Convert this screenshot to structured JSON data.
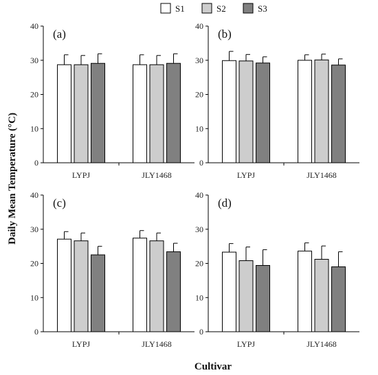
{
  "figure": {
    "ylabel": "Daily Mean Temperature (°C)",
    "xlabel": "Cultivar"
  },
  "legend": [
    {
      "name": "S1",
      "color": "#ffffff"
    },
    {
      "name": "S2",
      "color": "#cdcdcd"
    },
    {
      "name": "S3",
      "color": "#808080"
    }
  ],
  "chart_data": [
    {
      "type": "bar",
      "label": "(a)",
      "categories": [
        "LYPJ",
        "JLY1468"
      ],
      "ylim": [
        0,
        40
      ],
      "yticks": [
        0,
        10,
        20,
        30,
        40
      ],
      "series": [
        {
          "name": "S1",
          "values": [
            28.7,
            28.7
          ],
          "errors": [
            2.9,
            2.9
          ]
        },
        {
          "name": "S2",
          "values": [
            28.7,
            28.7
          ],
          "errors": [
            2.7,
            2.7
          ]
        },
        {
          "name": "S3",
          "values": [
            29.1,
            29.1
          ],
          "errors": [
            2.8,
            2.8
          ]
        }
      ]
    },
    {
      "type": "bar",
      "label": "(b)",
      "categories": [
        "LYPJ",
        "JLY1468"
      ],
      "ylim": [
        0,
        40
      ],
      "yticks": [
        0,
        10,
        20,
        30,
        40
      ],
      "series": [
        {
          "name": "S1",
          "values": [
            29.9,
            30.0
          ],
          "errors": [
            2.7,
            1.6
          ]
        },
        {
          "name": "S2",
          "values": [
            29.8,
            30.1
          ],
          "errors": [
            1.9,
            1.7
          ]
        },
        {
          "name": "S3",
          "values": [
            29.2,
            28.6
          ],
          "errors": [
            1.8,
            1.8
          ]
        }
      ]
    },
    {
      "type": "bar",
      "label": "(c)",
      "categories": [
        "LYPJ",
        "JLY1468"
      ],
      "ylim": [
        0,
        40
      ],
      "yticks": [
        0,
        10,
        20,
        30,
        40
      ],
      "series": [
        {
          "name": "S1",
          "values": [
            27.1,
            27.4
          ],
          "errors": [
            2.2,
            2.2
          ]
        },
        {
          "name": "S2",
          "values": [
            26.6,
            26.6
          ],
          "errors": [
            2.3,
            2.3
          ]
        },
        {
          "name": "S3",
          "values": [
            22.5,
            23.4
          ],
          "errors": [
            2.5,
            2.5
          ]
        }
      ]
    },
    {
      "type": "bar",
      "label": "(d)",
      "categories": [
        "LYPJ",
        "JLY1468"
      ],
      "ylim": [
        0,
        40
      ],
      "yticks": [
        0,
        10,
        20,
        30,
        40
      ],
      "series": [
        {
          "name": "S1",
          "values": [
            23.3,
            23.6
          ],
          "errors": [
            2.5,
            2.4
          ]
        },
        {
          "name": "S2",
          "values": [
            20.8,
            21.2
          ],
          "errors": [
            4.0,
            3.9
          ]
        },
        {
          "name": "S3",
          "values": [
            19.4,
            19.0
          ],
          "errors": [
            4.6,
            4.4
          ]
        }
      ]
    }
  ]
}
